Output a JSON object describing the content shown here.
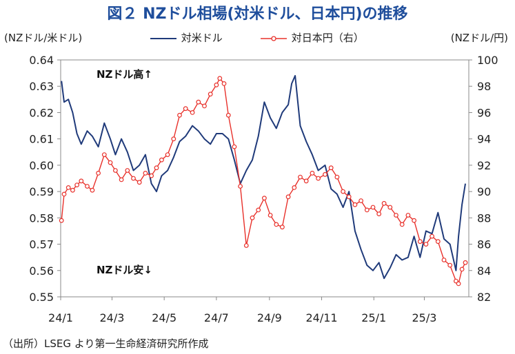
{
  "title": "図２ NZドル相場(対米ドル、日本円)の推移",
  "left_axis_unit": "(NZドル/米ドル)",
  "right_axis_unit": "(NZドル/円)",
  "source": "（出所）LSEG より第一生命経済研究所作成",
  "colors": {
    "usd": "#1f3a7a",
    "jpy": "#e8302a",
    "axis": "#888888",
    "title": "#1f4e9c"
  },
  "chart_data": {
    "type": "line",
    "title": "図２ NZドル相場(対米ドル、日本円)の推移",
    "xlabel": "",
    "x_ticks": [
      "24/1",
      "24/3",
      "24/5",
      "24/7",
      "24/9",
      "24/11",
      "25/1",
      "25/3"
    ],
    "ylabel_left": "(NZドル/米ドル)",
    "ylabel_right": "(NZドル/円)",
    "ylim_left": [
      0.55,
      0.64
    ],
    "ylim_right": [
      82,
      100
    ],
    "y_ticks_left": [
      "0.55",
      "0.56",
      "0.57",
      "0.58",
      "0.59",
      "0.60",
      "0.61",
      "0.62",
      "0.63",
      "0.64"
    ],
    "y_ticks_right": [
      "82",
      "84",
      "86",
      "88",
      "90",
      "92",
      "94",
      "96",
      "98",
      "100"
    ],
    "grid": false,
    "legend_position": "top",
    "annotations": [
      {
        "text": "NZドル高↑",
        "position": "top-left"
      },
      {
        "text": "NZドル安↓",
        "position": "bottom-left"
      }
    ],
    "series": [
      {
        "name": "対米ドル",
        "axis": "left",
        "color": "#1f3a7a",
        "marker": "none",
        "points": [
          [
            "2024-01-02",
            0.632
          ],
          [
            "2024-01-05",
            0.624
          ],
          [
            "2024-01-10",
            0.625
          ],
          [
            "2024-01-15",
            0.62
          ],
          [
            "2024-01-20",
            0.612
          ],
          [
            "2024-01-25",
            0.608
          ],
          [
            "2024-02-01",
            0.613
          ],
          [
            "2024-02-07",
            0.611
          ],
          [
            "2024-02-14",
            0.607
          ],
          [
            "2024-02-21",
            0.616
          ],
          [
            "2024-02-28",
            0.61
          ],
          [
            "2024-03-05",
            0.604
          ],
          [
            "2024-03-12",
            0.61
          ],
          [
            "2024-03-19",
            0.605
          ],
          [
            "2024-03-26",
            0.598
          ],
          [
            "2024-04-02",
            0.6
          ],
          [
            "2024-04-09",
            0.604
          ],
          [
            "2024-04-16",
            0.593
          ],
          [
            "2024-04-22",
            0.59
          ],
          [
            "2024-04-28",
            0.596
          ],
          [
            "2024-05-05",
            0.598
          ],
          [
            "2024-05-12",
            0.603
          ],
          [
            "2024-05-19",
            0.609
          ],
          [
            "2024-05-26",
            0.611
          ],
          [
            "2024-06-03",
            0.615
          ],
          [
            "2024-06-10",
            0.613
          ],
          [
            "2024-06-17",
            0.61
          ],
          [
            "2024-06-24",
            0.608
          ],
          [
            "2024-07-01",
            0.612
          ],
          [
            "2024-07-08",
            0.612
          ],
          [
            "2024-07-15",
            0.61
          ],
          [
            "2024-07-22",
            0.602
          ],
          [
            "2024-07-29",
            0.593
          ],
          [
            "2024-08-05",
            0.598
          ],
          [
            "2024-08-12",
            0.602
          ],
          [
            "2024-08-19",
            0.611
          ],
          [
            "2024-08-26",
            0.624
          ],
          [
            "2024-09-02",
            0.618
          ],
          [
            "2024-09-09",
            0.614
          ],
          [
            "2024-09-16",
            0.62
          ],
          [
            "2024-09-23",
            0.623
          ],
          [
            "2024-09-27",
            0.631
          ],
          [
            "2024-10-01",
            0.634
          ],
          [
            "2024-10-07",
            0.615
          ],
          [
            "2024-10-14",
            0.609
          ],
          [
            "2024-10-21",
            0.604
          ],
          [
            "2024-10-28",
            0.598
          ],
          [
            "2024-11-05",
            0.6
          ],
          [
            "2024-11-12",
            0.591
          ],
          [
            "2024-11-19",
            0.589
          ],
          [
            "2024-11-26",
            0.584
          ],
          [
            "2024-12-03",
            0.59
          ],
          [
            "2024-12-10",
            0.575
          ],
          [
            "2024-12-17",
            0.568
          ],
          [
            "2024-12-24",
            0.562
          ],
          [
            "2024-12-31",
            0.56
          ],
          [
            "2025-01-07",
            0.563
          ],
          [
            "2025-01-13",
            0.557
          ],
          [
            "2025-01-20",
            0.561
          ],
          [
            "2025-01-27",
            0.566
          ],
          [
            "2025-02-03",
            0.564
          ],
          [
            "2025-02-10",
            0.565
          ],
          [
            "2025-02-17",
            0.573
          ],
          [
            "2025-02-24",
            0.565
          ],
          [
            "2025-03-03",
            0.575
          ],
          [
            "2025-03-10",
            0.574
          ],
          [
            "2025-03-17",
            0.582
          ],
          [
            "2025-03-24",
            0.572
          ],
          [
            "2025-03-31",
            0.57
          ],
          [
            "2025-04-07",
            0.56
          ],
          [
            "2025-04-10",
            0.573
          ],
          [
            "2025-04-14",
            0.585
          ],
          [
            "2025-04-18",
            0.593
          ]
        ]
      },
      {
        "name": "対日本円（右）",
        "axis": "right",
        "color": "#e8302a",
        "marker": "circle",
        "points": [
          [
            "2024-01-02",
            87.8
          ],
          [
            "2024-01-05",
            89.8
          ],
          [
            "2024-01-10",
            90.3
          ],
          [
            "2024-01-15",
            90.1
          ],
          [
            "2024-01-20",
            90.5
          ],
          [
            "2024-01-25",
            90.8
          ],
          [
            "2024-02-01",
            90.4
          ],
          [
            "2024-02-07",
            90.1
          ],
          [
            "2024-02-14",
            91.4
          ],
          [
            "2024-02-21",
            92.8
          ],
          [
            "2024-02-28",
            92.2
          ],
          [
            "2024-03-05",
            91.6
          ],
          [
            "2024-03-12",
            90.9
          ],
          [
            "2024-03-19",
            91.6
          ],
          [
            "2024-03-26",
            91.0
          ],
          [
            "2024-04-02",
            90.7
          ],
          [
            "2024-04-09",
            91.4
          ],
          [
            "2024-04-16",
            91.2
          ],
          [
            "2024-04-22",
            91.8
          ],
          [
            "2024-04-28",
            92.4
          ],
          [
            "2024-05-05",
            92.8
          ],
          [
            "2024-05-12",
            94.0
          ],
          [
            "2024-05-19",
            95.8
          ],
          [
            "2024-05-26",
            96.3
          ],
          [
            "2024-06-03",
            96.0
          ],
          [
            "2024-06-10",
            96.8
          ],
          [
            "2024-06-17",
            96.5
          ],
          [
            "2024-06-24",
            97.4
          ],
          [
            "2024-07-01",
            98.1
          ],
          [
            "2024-07-05",
            98.6
          ],
          [
            "2024-07-10",
            98.2
          ],
          [
            "2024-07-15",
            95.8
          ],
          [
            "2024-07-22",
            93.4
          ],
          [
            "2024-07-29",
            90.4
          ],
          [
            "2024-08-05",
            85.9
          ],
          [
            "2024-08-12",
            88.0
          ],
          [
            "2024-08-19",
            88.6
          ],
          [
            "2024-08-26",
            89.5
          ],
          [
            "2024-09-02",
            88.2
          ],
          [
            "2024-09-09",
            87.5
          ],
          [
            "2024-09-16",
            87.3
          ],
          [
            "2024-09-23",
            89.6
          ],
          [
            "2024-09-30",
            90.3
          ],
          [
            "2024-10-07",
            91.1
          ],
          [
            "2024-10-14",
            90.8
          ],
          [
            "2024-10-21",
            91.4
          ],
          [
            "2024-10-28",
            91.0
          ],
          [
            "2024-11-05",
            91.3
          ],
          [
            "2024-11-12",
            91.8
          ],
          [
            "2024-11-19",
            91.1
          ],
          [
            "2024-11-26",
            90.0
          ],
          [
            "2024-12-03",
            89.6
          ],
          [
            "2024-12-10",
            89.0
          ],
          [
            "2024-12-17",
            89.3
          ],
          [
            "2024-12-24",
            88.6
          ],
          [
            "2024-12-31",
            88.8
          ],
          [
            "2025-01-07",
            88.3
          ],
          [
            "2025-01-13",
            89.1
          ],
          [
            "2025-01-20",
            88.8
          ],
          [
            "2025-01-27",
            88.2
          ],
          [
            "2025-02-03",
            87.5
          ],
          [
            "2025-02-10",
            88.2
          ],
          [
            "2025-02-17",
            87.8
          ],
          [
            "2025-02-24",
            86.2
          ],
          [
            "2025-03-03",
            86.0
          ],
          [
            "2025-03-10",
            86.6
          ],
          [
            "2025-03-17",
            86.2
          ],
          [
            "2025-03-24",
            84.8
          ],
          [
            "2025-03-31",
            84.4
          ],
          [
            "2025-04-07",
            83.2
          ],
          [
            "2025-04-10",
            83.0
          ],
          [
            "2025-04-14",
            84.1
          ],
          [
            "2025-04-18",
            84.6
          ]
        ]
      }
    ]
  }
}
